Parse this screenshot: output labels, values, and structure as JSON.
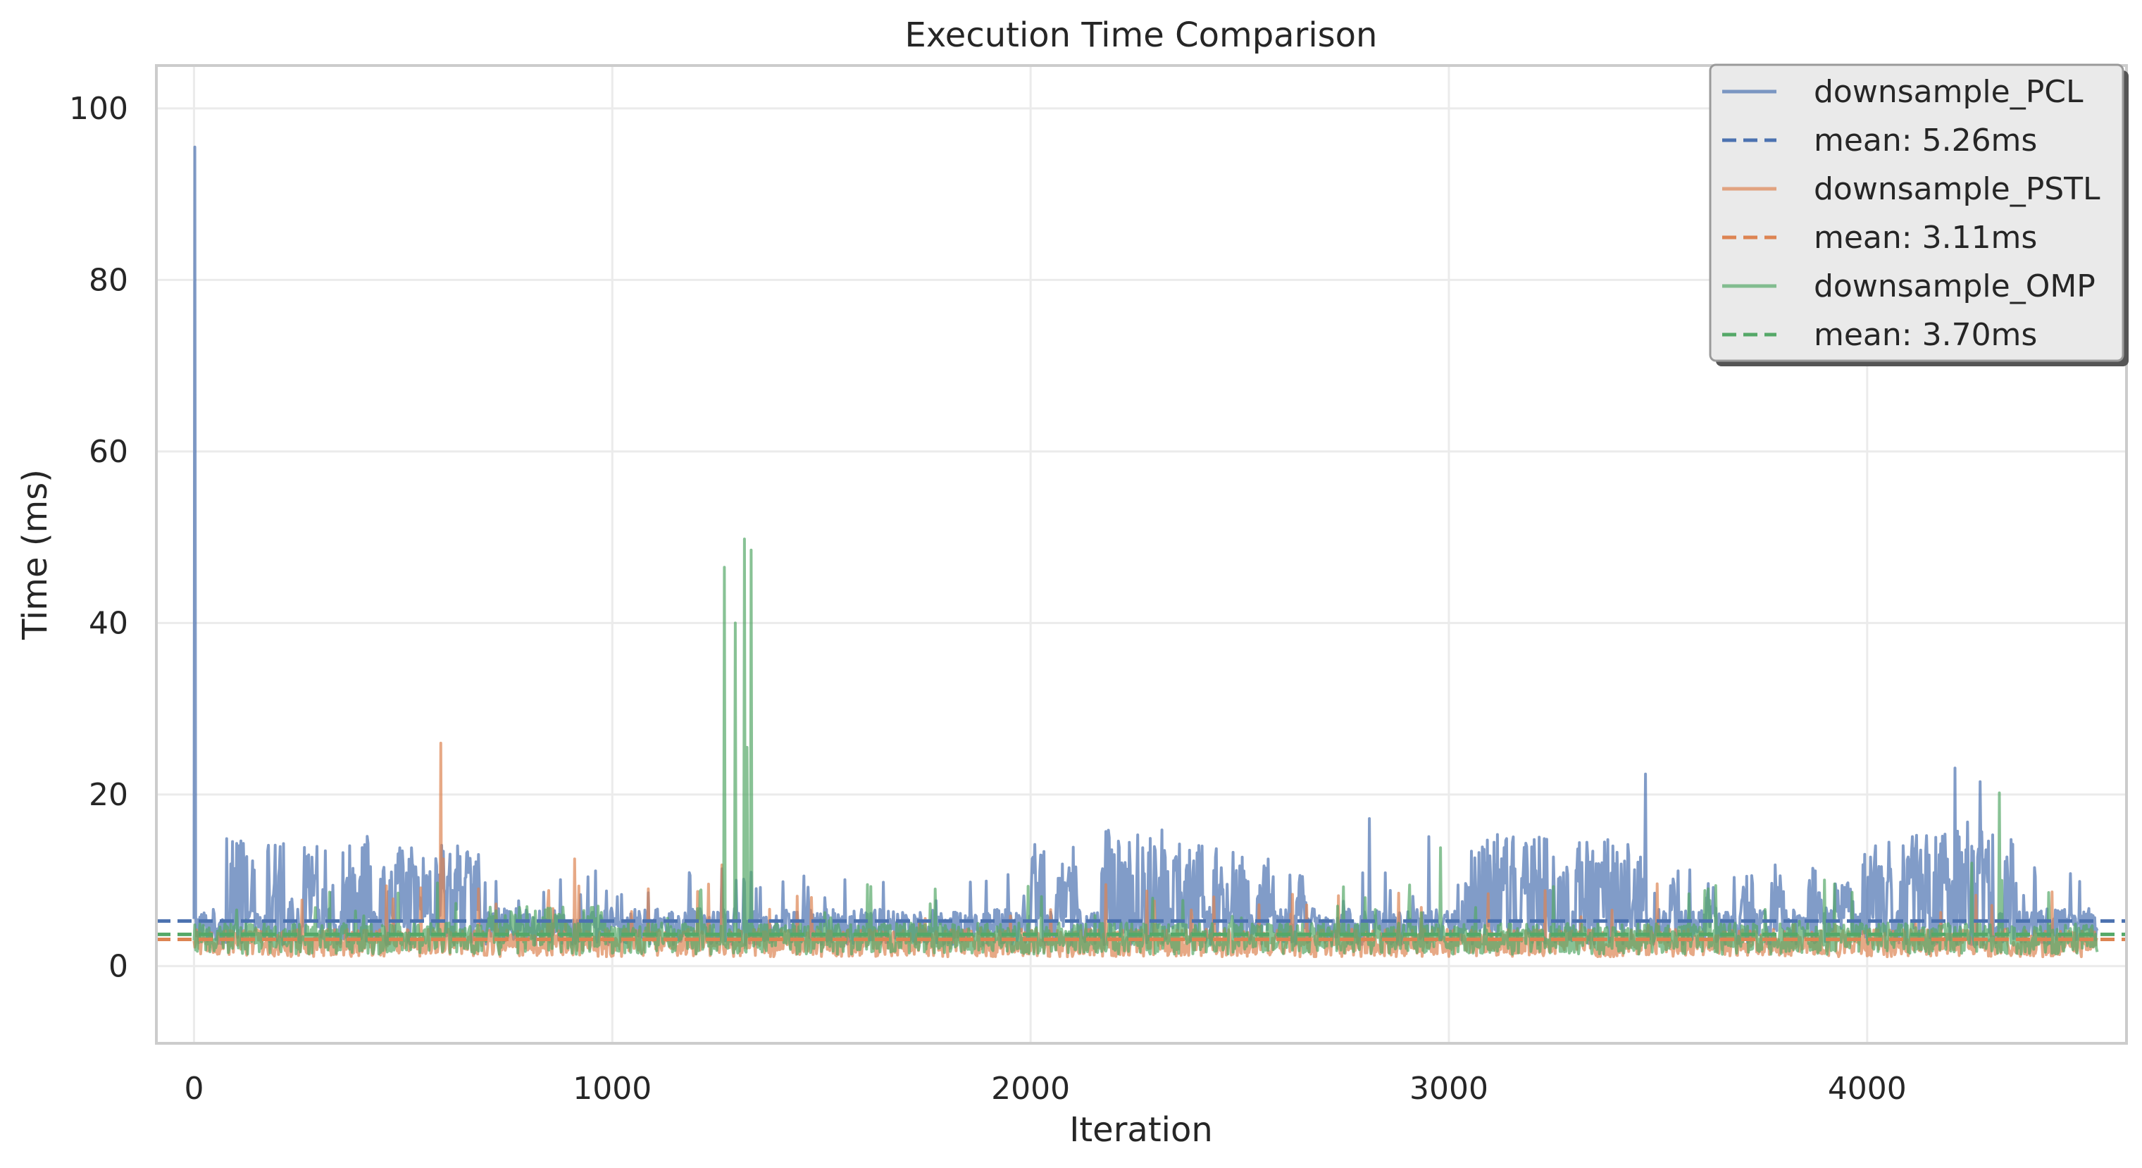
{
  "chart_data": {
    "type": "line",
    "title": "Execution Time Comparison",
    "xlabel": "Iteration",
    "ylabel": "Time (ms)",
    "xlim": [
      -90,
      4620
    ],
    "ylim": [
      -9,
      105
    ],
    "xticks": [
      0,
      1000,
      2000,
      3000,
      4000
    ],
    "yticks": [
      0,
      20,
      40,
      60,
      80,
      100
    ],
    "grid": true,
    "legend_position": "top-right",
    "series": [
      {
        "name": "downsample_PCL",
        "color": "#4c72b0",
        "mean": 5.26,
        "mean_label": "mean: 5.26ms",
        "x_max": 4550,
        "base": 4.6,
        "noise": 3.0,
        "spike_prob": 0.06,
        "spikes": [
          [
            1,
            95.5
          ],
          [
            1468,
            9.2
          ],
          [
            1855,
            9.8
          ],
          [
            2810,
            17.2
          ],
          [
            2951,
            15.1
          ],
          [
            3470,
            22.4
          ],
          [
            4210,
            23.1
          ],
          [
            4240,
            16.8
          ],
          [
            4270,
            21.5
          ],
          [
            4300,
            15.3
          ]
        ],
        "bursts": [
          [
            75,
            140,
            15.0
          ],
          [
            175,
            215,
            14.5
          ],
          [
            255,
            335,
            14.3
          ],
          [
            350,
            425,
            15.2
          ],
          [
            440,
            565,
            13.8
          ],
          [
            575,
            680,
            14.2
          ],
          [
            2000,
            2040,
            15.0
          ],
          [
            2060,
            2110,
            14.0
          ],
          [
            2170,
            2330,
            16.0
          ],
          [
            2340,
            2410,
            14.5
          ],
          [
            2430,
            2460,
            14.0
          ],
          [
            2480,
            2520,
            13.5
          ],
          [
            2540,
            2580,
            12.5
          ],
          [
            2630,
            2660,
            11.0
          ],
          [
            3040,
            3430,
            15.4
          ],
          [
            3440,
            3470,
            13.0
          ],
          [
            3530,
            3560,
            12.0
          ],
          [
            3610,
            3640,
            10.5
          ],
          [
            3700,
            3730,
            11.0
          ],
          [
            3770,
            3800,
            12.5
          ],
          [
            3850,
            3890,
            11.5
          ],
          [
            3920,
            3960,
            10.0
          ],
          [
            3990,
            4060,
            15.2
          ],
          [
            4080,
            4290,
            15.8
          ],
          [
            4330,
            4350,
            15.0
          ]
        ]
      },
      {
        "name": "downsample_PSTL",
        "color": "#dd8452",
        "mean": 3.11,
        "mean_label": "mean: 3.11ms",
        "x_max": 4550,
        "base": 2.7,
        "noise": 2.3,
        "spike_prob": 0.02,
        "spikes": [
          [
            590,
            26.0
          ],
          [
            595,
            12.5
          ],
          [
            680,
            9.0
          ],
          [
            910,
            12.5
          ],
          [
            1085,
            9.0
          ],
          [
            1262,
            11.8
          ],
          [
            1475,
            8.0
          ],
          [
            2180,
            9.5
          ],
          [
            2880,
            8.5
          ],
          [
            3230,
            8.8
          ]
        ],
        "bursts": []
      },
      {
        "name": "downsample_OMP",
        "color": "#55a868",
        "mean": 3.7,
        "mean_label": "mean: 3.70ms",
        "x_max": 4550,
        "base": 3.2,
        "noise": 2.6,
        "spike_prob": 0.03,
        "spikes": [
          [
            1268,
            46.5
          ],
          [
            1293,
            40.0
          ],
          [
            1315,
            49.8
          ],
          [
            1322,
            25.5
          ],
          [
            1332,
            48.5
          ],
          [
            1610,
            9.5
          ],
          [
            2980,
            13.8
          ],
          [
            4315,
            20.2
          ],
          [
            4250,
            12.0
          ],
          [
            3620,
            9.0
          ]
        ],
        "bursts": [
          [
            700,
            980,
            7.0
          ]
        ]
      }
    ]
  }
}
